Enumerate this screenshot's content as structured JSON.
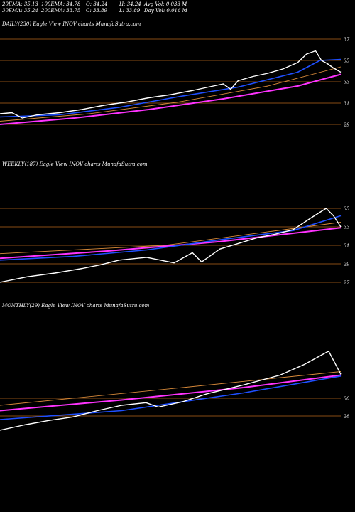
{
  "stats": {
    "row1": [
      "20EMA: 35.13",
      "100EMA: 34.78",
      "O: 34.24",
      "H: 34.24",
      "Avg Vol: 0.033 M"
    ],
    "row2": [
      "30EMA: 35.24",
      "200EMA: 33.75",
      "C: 33.89",
      "L: 33.89",
      "Day Vol: 0.016 M"
    ]
  },
  "colors": {
    "price": "#ffffff",
    "ema_fast": "#1f4fff",
    "ema_slow": "#ff33ff",
    "ema_mid": "#d88a3a",
    "grid": "#b5651d"
  },
  "chart_data": [
    {
      "type": "line",
      "title": "DAILY(230) Eagle  View  INOV charts MunafaSutra.com",
      "ylim": [
        28,
        38
      ],
      "yticks": [
        "37",
        "35",
        "33",
        "31",
        "29"
      ],
      "ytick_values": [
        37,
        35,
        33,
        31,
        29
      ],
      "n": 230,
      "series": [
        {
          "key": "price",
          "points": [
            [
              0,
              30.0
            ],
            [
              8,
              30.1
            ],
            [
              15,
              29.6
            ],
            [
              25,
              29.9
            ],
            [
              40,
              30.1
            ],
            [
              55,
              30.4
            ],
            [
              70,
              30.8
            ],
            [
              85,
              31.1
            ],
            [
              100,
              31.5
            ],
            [
              115,
              31.8
            ],
            [
              130,
              32.2
            ],
            [
              140,
              32.5
            ],
            [
              150,
              32.8
            ],
            [
              155,
              32.3
            ],
            [
              160,
              33.1
            ],
            [
              170,
              33.5
            ],
            [
              180,
              33.8
            ],
            [
              190,
              34.2
            ],
            [
              200,
              34.8
            ],
            [
              206,
              35.6
            ],
            [
              212,
              35.9
            ],
            [
              216,
              35.0
            ],
            [
              220,
              34.7
            ],
            [
              224,
              34.3
            ],
            [
              229,
              33.9
            ]
          ]
        },
        {
          "key": "ema_fast",
          "points": [
            [
              0,
              29.7
            ],
            [
              40,
              29.9
            ],
            [
              80,
              30.6
            ],
            [
              120,
              31.6
            ],
            [
              160,
              32.5
            ],
            [
              200,
              33.9
            ],
            [
              215,
              35.0
            ],
            [
              229,
              35.1
            ]
          ]
        },
        {
          "key": "ema_slow",
          "points": [
            [
              0,
              29.0
            ],
            [
              50,
              29.6
            ],
            [
              100,
              30.4
            ],
            [
              150,
              31.4
            ],
            [
              200,
              32.6
            ],
            [
              229,
              33.7
            ]
          ]
        },
        {
          "key": "ema_mid",
          "points": [
            [
              0,
              29.3
            ],
            [
              60,
              30.0
            ],
            [
              120,
              31.1
            ],
            [
              180,
              32.6
            ],
            [
              229,
              34.4
            ]
          ]
        }
      ]
    },
    {
      "type": "line",
      "title": "WEEKLY(187) Eagle  View  INOV charts MunafaSutra.com",
      "ylim": [
        26,
        36
      ],
      "yticks": [
        "35",
        "33",
        "31",
        "29",
        "27"
      ],
      "ytick_values": [
        35,
        33,
        31,
        29,
        27
      ],
      "n": 187,
      "series": [
        {
          "key": "price",
          "points": [
            [
              0,
              27.0
            ],
            [
              15,
              27.6
            ],
            [
              30,
              28.0
            ],
            [
              45,
              28.5
            ],
            [
              55,
              28.9
            ],
            [
              65,
              29.4
            ],
            [
              80,
              29.7
            ],
            [
              95,
              29.1
            ],
            [
              105,
              30.2
            ],
            [
              110,
              29.2
            ],
            [
              120,
              30.6
            ],
            [
              130,
              31.2
            ],
            [
              140,
              31.8
            ],
            [
              150,
              32.2
            ],
            [
              160,
              32.7
            ],
            [
              170,
              34.0
            ],
            [
              178,
              35.0
            ],
            [
              182,
              34.2
            ],
            [
              186,
              33.0
            ]
          ]
        },
        {
          "key": "ema_fast",
          "points": [
            [
              0,
              29.4
            ],
            [
              40,
              29.8
            ],
            [
              80,
              30.5
            ],
            [
              120,
              31.6
            ],
            [
              160,
              32.6
            ],
            [
              186,
              34.2
            ]
          ]
        },
        {
          "key": "ema_slow",
          "points": [
            [
              0,
              29.6
            ],
            [
              60,
              30.4
            ],
            [
              120,
              31.4
            ],
            [
              186,
              32.9
            ]
          ]
        },
        {
          "key": "ema_mid",
          "points": [
            [
              0,
              30.1
            ],
            [
              90,
              31.0
            ],
            [
              186,
              33.5
            ]
          ]
        }
      ]
    },
    {
      "type": "line",
      "title": "MONTHLY(29) Eagle  View  INOV charts MunafaSutra.com",
      "ylim": [
        26,
        38
      ],
      "yticks": [
        "30",
        "28"
      ],
      "ytick_values": [
        30,
        28
      ],
      "n": 29,
      "series": [
        {
          "key": "price",
          "points": [
            [
              0,
              26.4
            ],
            [
              2,
              27.0
            ],
            [
              4,
              27.5
            ],
            [
              6,
              27.9
            ],
            [
              8,
              28.6
            ],
            [
              10,
              29.2
            ],
            [
              12,
              29.5
            ],
            [
              13,
              29.0
            ],
            [
              15,
              29.6
            ],
            [
              17,
              30.5
            ],
            [
              20,
              31.5
            ],
            [
              23,
              32.6
            ],
            [
              25,
              33.8
            ],
            [
              27,
              35.3
            ],
            [
              28,
              32.7
            ]
          ]
        },
        {
          "key": "ema_fast",
          "points": [
            [
              0,
              27.6
            ],
            [
              10,
              28.6
            ],
            [
              20,
              30.6
            ],
            [
              28,
              32.5
            ]
          ]
        },
        {
          "key": "ema_slow",
          "points": [
            [
              0,
              28.6
            ],
            [
              10,
              29.8
            ],
            [
              20,
              31.2
            ],
            [
              28,
              32.6
            ]
          ]
        },
        {
          "key": "ema_mid",
          "points": [
            [
              0,
              29.2
            ],
            [
              15,
              31.2
            ],
            [
              28,
              33.0
            ]
          ]
        }
      ]
    }
  ]
}
